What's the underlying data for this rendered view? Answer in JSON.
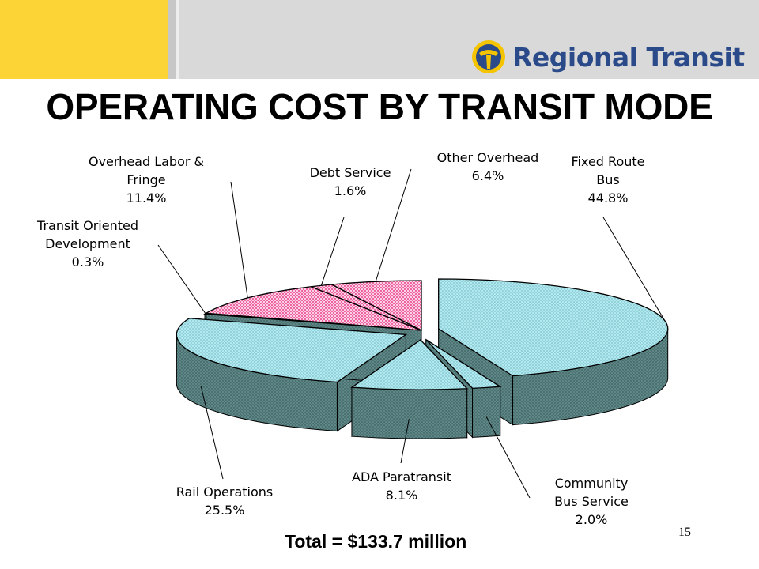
{
  "logo": {
    "text": "Regional Transit"
  },
  "title": "OPERATING COST BY TRANSIT MODE",
  "chart_data": {
    "type": "pie",
    "title": "OPERATING COST BY TRANSIT MODE",
    "slices": [
      {
        "line1": "Fixed Route",
        "line2": "Bus",
        "pct_label": "44.8%",
        "value": 44.8,
        "color": "#a8e6ee",
        "explode": true
      },
      {
        "line1": "Community",
        "line2": "Bus Service",
        "pct_label": "2.0%",
        "value": 2.0,
        "color": "#a8e6ee",
        "explode": true
      },
      {
        "line1": "ADA Paratransit",
        "line2": "",
        "pct_label": "8.1%",
        "value": 8.1,
        "color": "#a8e6ee",
        "explode": true
      },
      {
        "line1": "Rail Operations",
        "line2": "",
        "pct_label": "25.5%",
        "value": 25.5,
        "color": "#a8e6ee",
        "explode": true
      },
      {
        "line1": "Transit Oriented",
        "line2": "Development",
        "pct_label": "0.3%",
        "value": 0.3,
        "color": "#a8e6ee",
        "explode": false
      },
      {
        "line1": "Overhead Labor &",
        "line2": "Fringe",
        "pct_label": "11.4%",
        "value": 11.4,
        "color": "#e8408a",
        "explode": false
      },
      {
        "line1": "Debt Service",
        "line2": "",
        "pct_label": "1.6%",
        "value": 1.6,
        "color": "#e8408a",
        "explode": false
      },
      {
        "line1": "Other Overhead",
        "line2": "",
        "pct_label": "6.4%",
        "value": 6.4,
        "color": "#e8408a",
        "explode": false
      }
    ],
    "side_color": "#5f8585"
  },
  "total": "Total = $133.7 million",
  "page_number": "15"
}
